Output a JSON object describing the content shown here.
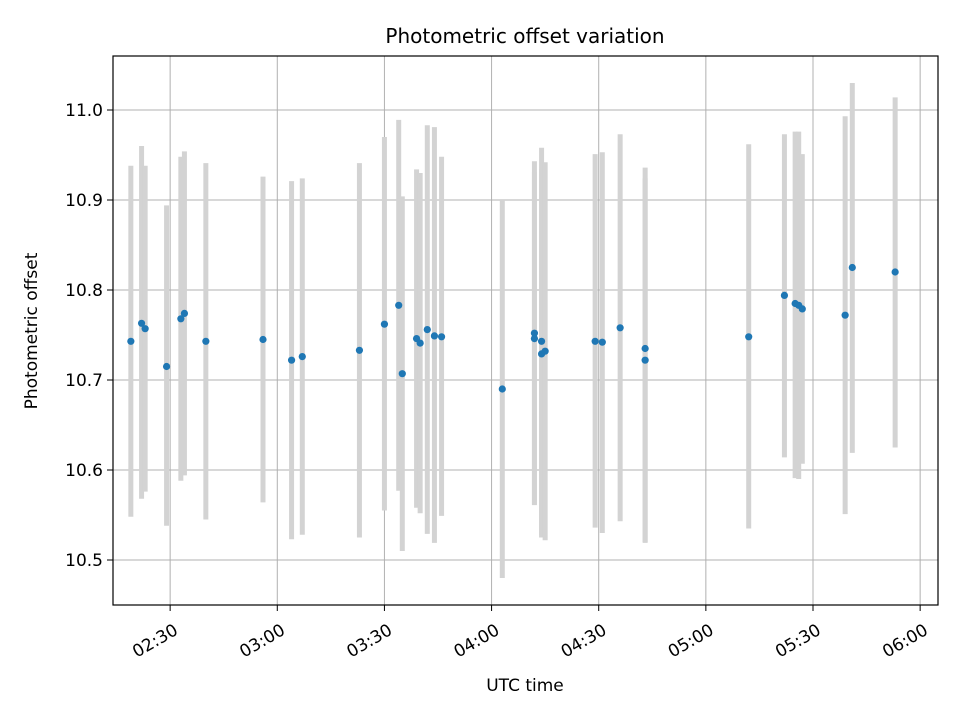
{
  "chart_data": {
    "type": "scatter",
    "title": "Photometric offset variation",
    "xlabel": "UTC time",
    "ylabel": "Photometric offset",
    "grid": true,
    "x_axis": "time",
    "xlim": [
      "02:14",
      "06:05"
    ],
    "ylim": [
      10.45,
      11.06
    ],
    "x_ticks": [
      "02:30",
      "03:00",
      "03:30",
      "04:00",
      "04:30",
      "05:00",
      "05:30",
      "06:00"
    ],
    "y_ticks": [
      10.5,
      10.6,
      10.7,
      10.8,
      10.9,
      11.0
    ],
    "marker_color": "#1f77b4",
    "errorbar_color": "#d3d3d3",
    "points": [
      {
        "t": "02:19",
        "y": 10.743,
        "lo": 10.548,
        "hi": 10.938
      },
      {
        "t": "02:22",
        "y": 10.763,
        "lo": 10.568,
        "hi": 10.96
      },
      {
        "t": "02:23",
        "y": 10.757,
        "lo": 10.576,
        "hi": 10.938
      },
      {
        "t": "02:29",
        "y": 10.715,
        "lo": 10.538,
        "hi": 10.894
      },
      {
        "t": "02:33",
        "y": 10.768,
        "lo": 10.588,
        "hi": 10.948
      },
      {
        "t": "02:34",
        "y": 10.774,
        "lo": 10.594,
        "hi": 10.954
      },
      {
        "t": "02:40",
        "y": 10.743,
        "lo": 10.545,
        "hi": 10.941
      },
      {
        "t": "02:56",
        "y": 10.745,
        "lo": 10.564,
        "hi": 10.926
      },
      {
        "t": "03:04",
        "y": 10.722,
        "lo": 10.523,
        "hi": 10.921
      },
      {
        "t": "03:07",
        "y": 10.726,
        "lo": 10.528,
        "hi": 10.924
      },
      {
        "t": "03:23",
        "y": 10.733,
        "lo": 10.525,
        "hi": 10.941
      },
      {
        "t": "03:30",
        "y": 10.762,
        "lo": 10.555,
        "hi": 10.97
      },
      {
        "t": "03:34",
        "y": 10.783,
        "lo": 10.577,
        "hi": 10.989
      },
      {
        "t": "03:35",
        "y": 10.707,
        "lo": 10.51,
        "hi": 10.904
      },
      {
        "t": "03:39",
        "y": 10.746,
        "lo": 10.558,
        "hi": 10.934
      },
      {
        "t": "03:40",
        "y": 10.741,
        "lo": 10.552,
        "hi": 10.93
      },
      {
        "t": "03:42",
        "y": 10.756,
        "lo": 10.529,
        "hi": 10.983
      },
      {
        "t": "03:44",
        "y": 10.749,
        "lo": 10.519,
        "hi": 10.981
      },
      {
        "t": "03:46",
        "y": 10.748,
        "lo": 10.549,
        "hi": 10.948
      },
      {
        "t": "04:03",
        "y": 10.69,
        "lo": 10.48,
        "hi": 10.9
      },
      {
        "t": "04:12",
        "y": 10.752,
        "lo": 10.561,
        "hi": 10.943
      },
      {
        "t": "04:12",
        "y": 10.746,
        "lo": 10.562,
        "hi": 10.931
      },
      {
        "t": "04:14",
        "y": 10.743,
        "lo": 10.528,
        "hi": 10.958
      },
      {
        "t": "04:14",
        "y": 10.729,
        "lo": 10.525,
        "hi": 10.934
      },
      {
        "t": "04:15",
        "y": 10.732,
        "lo": 10.522,
        "hi": 10.942
      },
      {
        "t": "04:29",
        "y": 10.743,
        "lo": 10.536,
        "hi": 10.951
      },
      {
        "t": "04:31",
        "y": 10.742,
        "lo": 10.53,
        "hi": 10.953
      },
      {
        "t": "04:36",
        "y": 10.758,
        "lo": 10.543,
        "hi": 10.973
      },
      {
        "t": "04:43",
        "y": 10.735,
        "lo": 10.519,
        "hi": 10.936
      },
      {
        "t": "04:43",
        "y": 10.722,
        "lo": 10.52,
        "hi": 10.924
      },
      {
        "t": "05:12",
        "y": 10.748,
        "lo": 10.535,
        "hi": 10.962
      },
      {
        "t": "05:22",
        "y": 10.794,
        "lo": 10.614,
        "hi": 10.973
      },
      {
        "t": "05:25",
        "y": 10.785,
        "lo": 10.591,
        "hi": 10.976
      },
      {
        "t": "05:26",
        "y": 10.783,
        "lo": 10.59,
        "hi": 10.976
      },
      {
        "t": "05:27",
        "y": 10.779,
        "lo": 10.607,
        "hi": 10.951
      },
      {
        "t": "05:39",
        "y": 10.772,
        "lo": 10.551,
        "hi": 10.993
      },
      {
        "t": "05:41",
        "y": 10.825,
        "lo": 10.619,
        "hi": 11.03
      },
      {
        "t": "05:53",
        "y": 10.82,
        "lo": 10.625,
        "hi": 11.014
      }
    ]
  }
}
